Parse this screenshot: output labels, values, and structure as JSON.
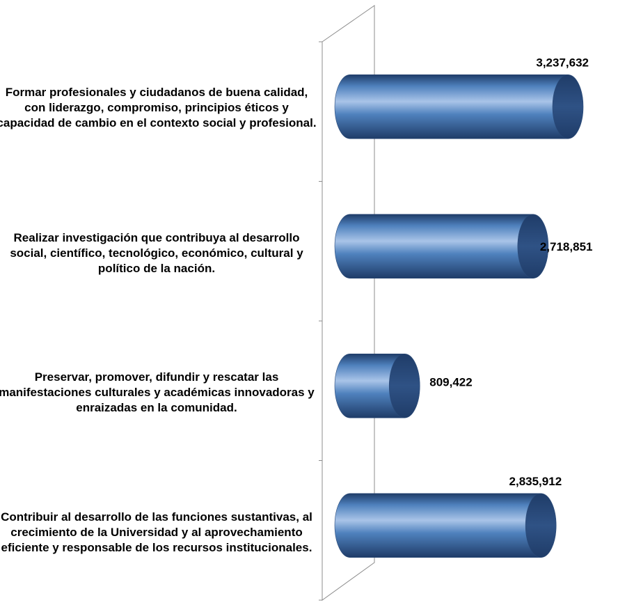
{
  "chart_data": {
    "type": "bar",
    "orientation": "horizontal",
    "style": "3d-cylinder",
    "title": "",
    "xlabel": "",
    "ylabel": "",
    "categories": [
      "Formar profesionales y ciudadanos de buena calidad, con liderazgo, compromiso, principios éticos y capacidad de cambio en el contexto social y profesional.",
      "Realizar investigación que contribuya al desarrollo social, científico, tecnológico, económico, cultural y político de la nación.",
      "Preservar, promover, difundir y rescatar las manifestaciones culturales y académicas innovadoras y enraizadas en la comunidad.",
      "Contribuir al desarrollo de las funciones sustantivas, al crecimiento de la Universidad y al aprovechamiento eficiente y responsable de los recursos institucionales."
    ],
    "values": [
      3237632,
      2718851,
      809422,
      2835912
    ],
    "value_labels": [
      "3,237,632",
      "2,718,851",
      "809,422",
      "2,835,912"
    ],
    "xlim": [
      0,
      3500000
    ],
    "grid": false,
    "legend": "none"
  },
  "colors": {
    "bar_body": "#4f81bd",
    "bar_highlight": "#a9c4e8",
    "bar_shadow": "#1f3c68",
    "bar_cap": "#2f5285",
    "axis_wall": "#8c8c8c",
    "text": "#000000"
  }
}
